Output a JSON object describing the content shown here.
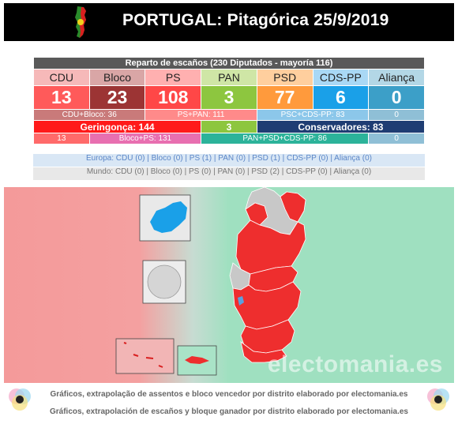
{
  "header": {
    "title": "PORTUGAL: Pitagórica 25/9/2019"
  },
  "table": {
    "caption": "Reparto de escaños (230 Diputados - mayoría 116)",
    "parties": [
      "CDU",
      "Bloco",
      "PS",
      "PAN",
      "PSD",
      "CDS-PP",
      "Aliança"
    ],
    "seats": [
      "13",
      "23",
      "108",
      "3",
      "77",
      "6",
      "0"
    ],
    "combos1": [
      "CDU+Bloco: 36",
      "PS+PAN: 111",
      "PSC+CDS-PP: 83",
      "0"
    ],
    "blocs": [
      "Geringonça: 144",
      "3",
      "Conservadores: 83"
    ],
    "combos2": [
      "13",
      "Bloco+PS: 131",
      "PAN+PSD+CDS-PP: 86",
      "0"
    ]
  },
  "chart_data": {
    "type": "table",
    "title": "Reparto de escaños (230 Diputados - mayoría 116)",
    "categories": [
      "CDU",
      "Bloco",
      "PS",
      "PAN",
      "PSD",
      "CDS-PP",
      "Aliança"
    ],
    "values": [
      13,
      23,
      108,
      3,
      77,
      6,
      0
    ],
    "colors": [
      "#ff5a5a",
      "#9c3434",
      "#ff4747",
      "#8dc63f",
      "#ff9a3c",
      "#1aa0e8",
      "#3c9fc8"
    ]
  },
  "regions": {
    "europa": "Europa: CDU (0) | Bloco (0) | PS (1) | PAN (0) | PSD (1) | CDS-PP (0) | Aliança (0)",
    "mundo": "Mundo: CDU (0) | Bloco (0) | PS (0) | PAN (0) | PSD (2) | CDS-PP (0) | Aliança (0)"
  },
  "watermark": "electomania.es",
  "footer": {
    "line1": "Gráficos, extrapolação de assentos e bloco vencedor por distrito elaborado por electomania.es",
    "line2": "Gráficos, extrapolación de escaños y bloque ganador por distrito elaborado por electomania.es"
  }
}
